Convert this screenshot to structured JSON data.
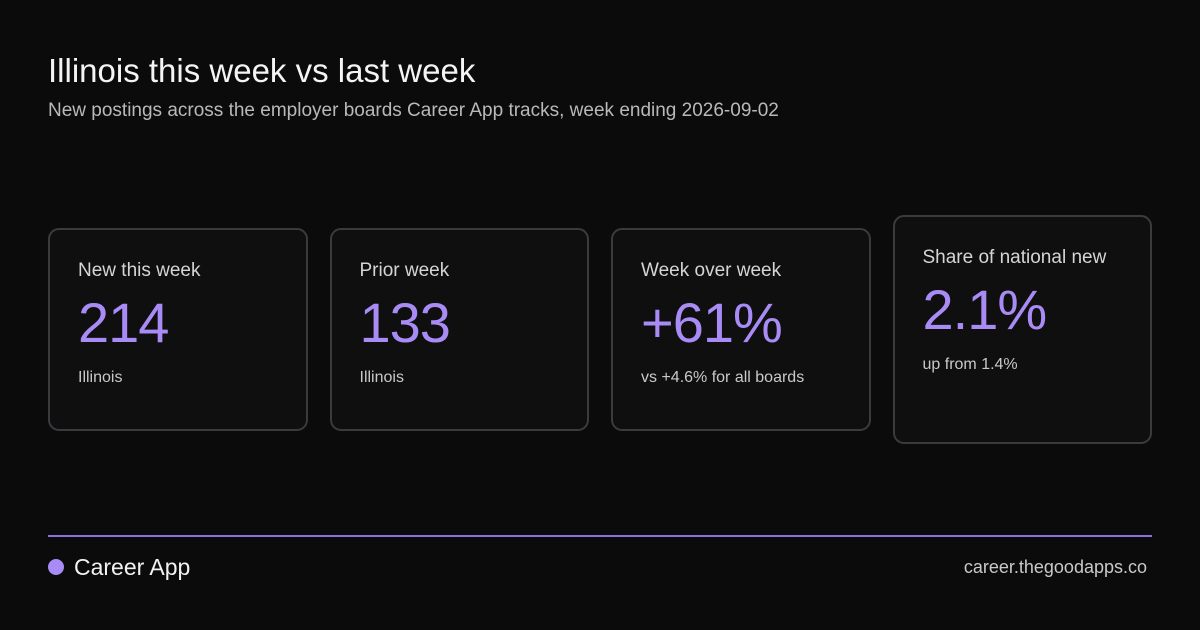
{
  "header": {
    "title": "Illinois this week vs last week",
    "subtitle": "New postings across the employer boards Career App tracks, week ending 2026-09-02"
  },
  "cards": [
    {
      "label": "New this week",
      "value": "214",
      "note": "Illinois"
    },
    {
      "label": "Prior week",
      "value": "133",
      "note": "Illinois"
    },
    {
      "label": "Week over week",
      "value": "+61%",
      "note": "vs +4.6% for all boards"
    },
    {
      "label": "Share of national new",
      "value": "2.1%",
      "note": "up from 1.4%"
    }
  ],
  "footer": {
    "brand": "Career App",
    "site": "career.thegoodapps.co"
  },
  "colors": {
    "background": "#0b0b0b",
    "accent": "#a98bf5",
    "card_border": "#3b3b3f"
  }
}
